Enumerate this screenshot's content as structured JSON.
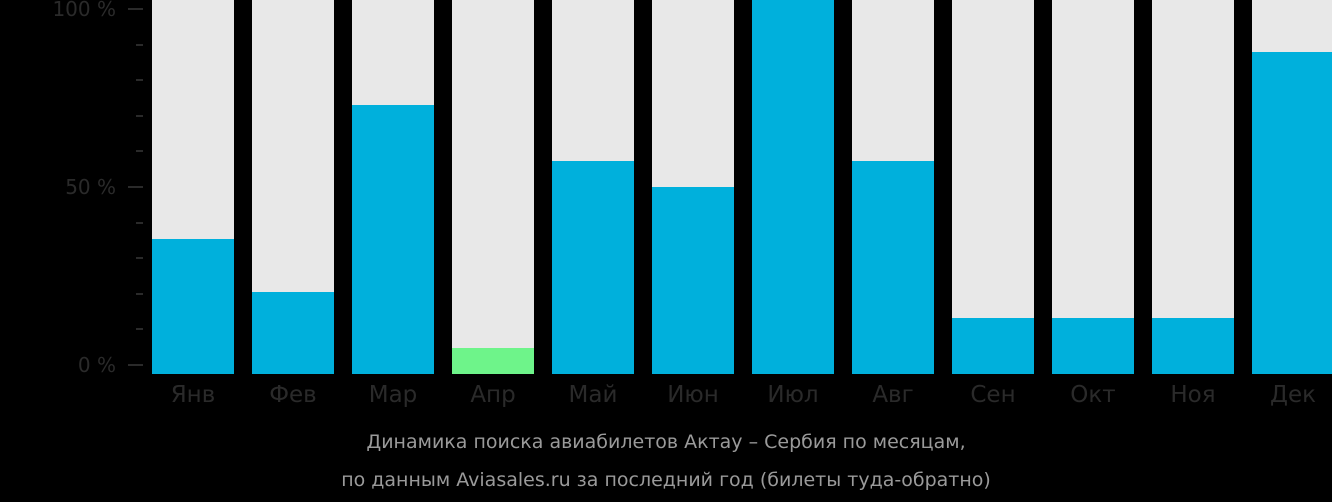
{
  "chart_data": {
    "type": "bar",
    "title": "Динамика поиска авиабилетов Актау – Сербия по месяцам,",
    "subtitle": "по данным Aviasales.ru за последний год (билеты туда-обратно)",
    "xlabel": "",
    "ylabel": "",
    "ylim": [
      0,
      100
    ],
    "yticks": [
      "0 %",
      "50 %",
      "100 %"
    ],
    "grid": false,
    "legend": null,
    "categories": [
      "Янв",
      "Фев",
      "Мар",
      "Апр",
      "Май",
      "Июн",
      "Июл",
      "Авг",
      "Сен",
      "Окт",
      "Ноя",
      "Дек"
    ],
    "values": [
      36,
      22,
      72,
      7,
      57,
      50,
      100,
      57,
      15,
      15,
      15,
      86
    ],
    "colors": {
      "bar": "#00b0dc",
      "highlight_min": "#6ef48a",
      "background_bar": "#e8e8e8",
      "page_background": "#000000"
    },
    "highlight_index": 3
  },
  "axis": {
    "y_labels": [
      {
        "text": "100 %",
        "value": 100
      },
      {
        "text": "50 %",
        "value": 50
      },
      {
        "text": "0 %",
        "value": 0
      }
    ]
  },
  "caption": {
    "line1": "Динамика поиска авиабилетов Актау – Сербия по месяцам,",
    "line2": "по данным Aviasales.ru за последний год (билеты туда-обратно)"
  }
}
